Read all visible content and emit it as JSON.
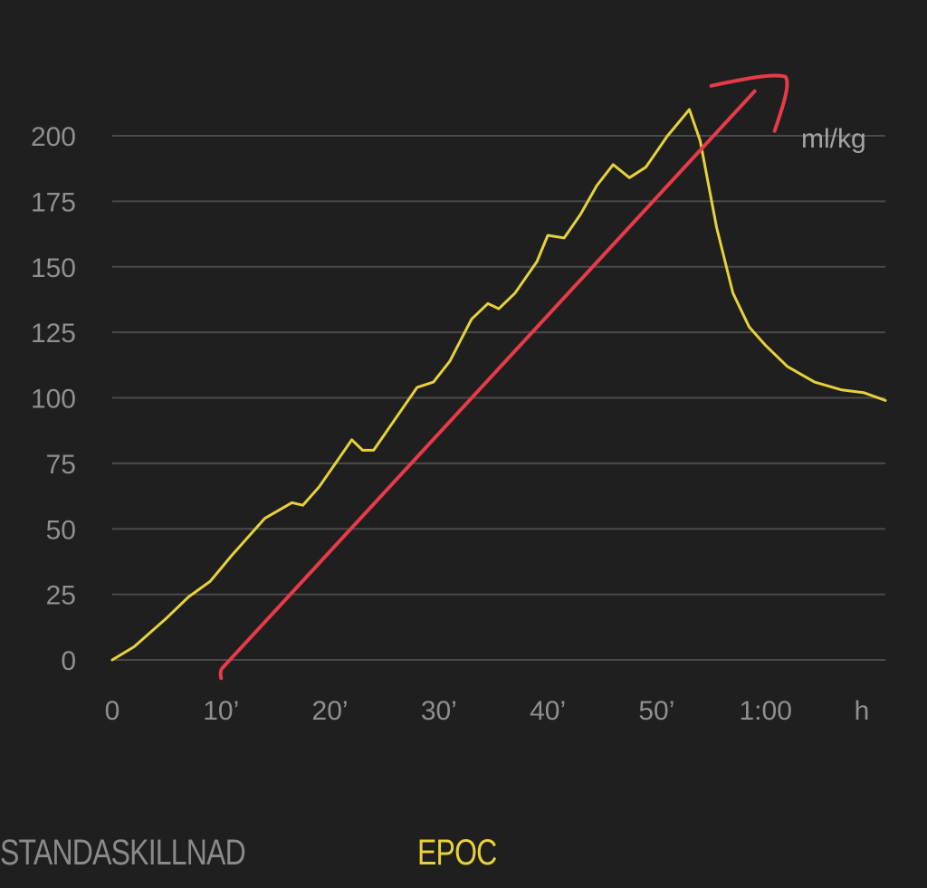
{
  "tabs": [
    {
      "label": "STANDASKILLNAD",
      "active": false
    },
    {
      "label": "EPOC",
      "active": true
    }
  ],
  "colors": {
    "background": "#1f1f1f",
    "grid": "#4a4a4a",
    "tick_text": "#8f8f8f",
    "series_line": "#e7d13a",
    "annotation": "#e83a48",
    "active_tab": "#e7d13a",
    "inactive_tab": "#8a8a8a"
  },
  "chart_data": {
    "type": "line",
    "title": "",
    "xlabel": "",
    "ylabel": "",
    "unit_label": "ml/kg",
    "x_unit_label": "h",
    "xlim": [
      0,
      71
    ],
    "ylim": [
      0,
      200
    ],
    "x_ticks": [
      {
        "value": 0,
        "label": "0"
      },
      {
        "value": 10,
        "label": "10’"
      },
      {
        "value": 20,
        "label": "20’"
      },
      {
        "value": 30,
        "label": "30’"
      },
      {
        "value": 40,
        "label": "40’"
      },
      {
        "value": 50,
        "label": "50’"
      },
      {
        "value": 60,
        "label": "1:00"
      }
    ],
    "y_ticks": [
      0,
      25,
      50,
      75,
      100,
      125,
      150,
      175,
      200
    ],
    "grid": true,
    "series": [
      {
        "color": "#e7d13a",
        "x": [
          0,
          2,
          5,
          7,
          9,
          11,
          14,
          16.5,
          17.5,
          19,
          21,
          22,
          23,
          24,
          26,
          28,
          29.5,
          31,
          33,
          34.5,
          35.5,
          37,
          39,
          40,
          41.5,
          43,
          44.5,
          46,
          47.5,
          49,
          51,
          52,
          53,
          54,
          55.5,
          57,
          58.5,
          60,
          62,
          64.5,
          67,
          69,
          71
        ],
        "values": [
          0,
          5,
          16,
          24,
          30,
          40,
          54,
          60,
          59,
          66,
          78,
          84,
          80,
          80,
          92,
          104,
          106,
          114,
          130,
          136,
          134,
          140,
          152,
          162,
          161,
          170,
          181,
          189,
          184,
          188,
          200,
          205,
          210,
          198,
          165,
          140,
          127,
          120,
          112,
          106,
          103,
          102,
          99
        ]
      }
    ],
    "annotations": [
      {
        "type": "freehand-arrow",
        "color": "#e83a48",
        "from": [
          10,
          -7
        ],
        "to": [
          59,
          217
        ]
      }
    ]
  }
}
